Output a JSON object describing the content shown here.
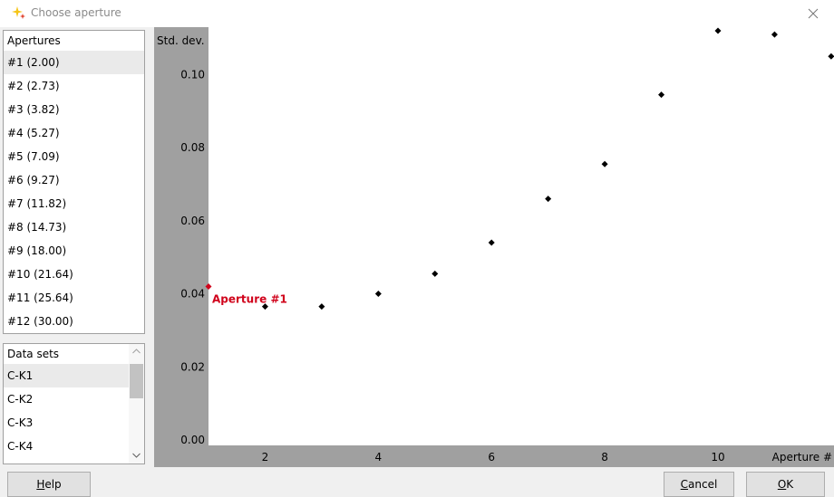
{
  "window": {
    "title": "Choose aperture"
  },
  "apertures": {
    "header": "Apertures",
    "items": [
      "#1 (2.00)",
      "#2 (2.73)",
      "#3 (3.82)",
      "#4 (5.27)",
      "#5 (7.09)",
      "#6 (9.27)",
      "#7 (11.82)",
      "#8 (14.73)",
      "#9 (18.00)",
      "#10 (21.64)",
      "#11 (25.64)",
      "#12 (30.00)"
    ],
    "selected": "#1 (2.00)"
  },
  "datasets": {
    "header": "Data sets",
    "items": [
      "C-K1",
      "C-K2",
      "C-K3",
      "C-K4"
    ],
    "selected": "C-K1"
  },
  "buttons": {
    "help_rest": "elp",
    "help_key": "H",
    "cancel_key": "C",
    "cancel_rest": "ancel",
    "ok_key": "O",
    "ok_rest": "K"
  },
  "chart_data": {
    "type": "scatter",
    "ylabel": "Std. dev.",
    "xlabel": "Aperture #",
    "y_ticks": [
      "0.00",
      "0.02",
      "0.04",
      "0.06",
      "0.08",
      "0.10"
    ],
    "x_ticks": [
      "2",
      "4",
      "6",
      "8",
      "10"
    ],
    "x": [
      1,
      2,
      3,
      4,
      5,
      6,
      7,
      8,
      9,
      10,
      11,
      12
    ],
    "y": [
      0.0435,
      0.038,
      0.038,
      0.0415,
      0.047,
      0.0555,
      0.0675,
      0.077,
      0.096,
      0.1135,
      0.1125,
      0.1065
    ],
    "highlight_index": 0,
    "highlight_label": "Aperture #1",
    "xlim": [
      1,
      12.05
    ],
    "ylim": [
      0,
      0.1145
    ],
    "colors": {
      "point": "#000000",
      "highlight": "#d0021b",
      "axis_band": "#a0a0a0",
      "plot_bg": "#ffffff"
    }
  }
}
